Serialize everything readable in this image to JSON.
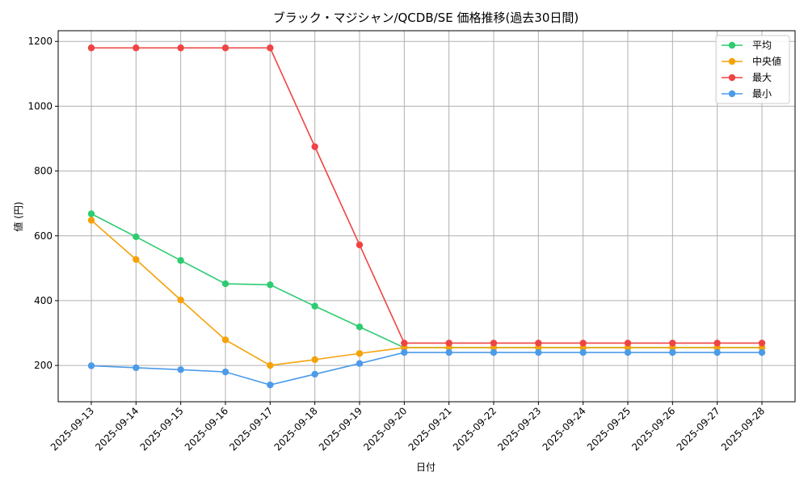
{
  "chart_data": {
    "type": "line",
    "title": "ブラック・マジシャン/QCDB/SE 価格推移(過去30日間)",
    "xlabel": "日付",
    "ylabel": "値 (円)",
    "categories": [
      "2025-09-13",
      "2025-09-14",
      "2025-09-15",
      "2025-09-16",
      "2025-09-17",
      "2025-09-18",
      "2025-09-19",
      "2025-09-20",
      "2025-09-21",
      "2025-09-22",
      "2025-09-23",
      "2025-09-24",
      "2025-09-25",
      "2025-09-26",
      "2025-09-27",
      "2025-09-28"
    ],
    "ylim": [
      88,
      1233
    ],
    "yticks": [
      200,
      400,
      600,
      800,
      1000,
      1200
    ],
    "grid": true,
    "legend_position": "top-right",
    "series": [
      {
        "name": "平均",
        "color": "#2ecc71",
        "values": [
          668,
          597,
          524,
          452,
          449,
          383,
          319,
          255,
          255,
          255,
          255,
          255,
          255,
          255,
          255,
          255
        ]
      },
      {
        "name": "中央値",
        "color": "#f5a20a",
        "values": [
          648,
          527,
          402,
          279,
          200,
          218,
          237,
          255,
          255,
          255,
          255,
          255,
          255,
          255,
          255,
          255
        ]
      },
      {
        "name": "最大",
        "color": "#ef4444",
        "values": [
          1180,
          1180,
          1180,
          1180,
          1180,
          875,
          572,
          269,
          269,
          269,
          269,
          269,
          269,
          269,
          269,
          269
        ]
      },
      {
        "name": "最小",
        "color": "#4c9be8",
        "values": [
          199,
          193,
          187,
          180,
          140,
          173,
          206,
          240,
          240,
          240,
          240,
          240,
          240,
          240,
          240,
          240
        ]
      }
    ]
  }
}
